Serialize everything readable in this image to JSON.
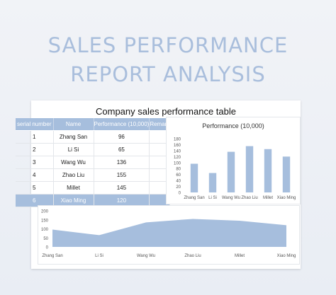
{
  "page": {
    "title_line1": "SALES PERFORMANCE",
    "title_line2": "REPORT ANALYSIS"
  },
  "table": {
    "title": "Company sales performance table",
    "headers": [
      "serial number",
      "Name",
      "Performance (10,000)",
      "Remark"
    ],
    "rows": [
      [
        "1",
        "Zhang San",
        "96",
        ""
      ],
      [
        "2",
        "Li Si",
        "65",
        ""
      ],
      [
        "3",
        "Wang Wu",
        "136",
        ""
      ],
      [
        "4",
        "Zhao Liu",
        "155",
        ""
      ],
      [
        "5",
        "Millet",
        "145",
        ""
      ],
      [
        "6",
        "Xiao Ming",
        "120",
        ""
      ]
    ]
  },
  "colors": {
    "accent": "#a6bedd",
    "bar": "#a6bedd",
    "area": "#a6bedd",
    "title": "#a9bedc"
  },
  "chart_data": [
    {
      "type": "bar",
      "title": "Performance (10,000)",
      "categories": [
        "Zhang San",
        "Li Si",
        "Wang Wu",
        "Zhao Liu",
        "Millet",
        "Xiao Ming"
      ],
      "values": [
        96,
        65,
        136,
        155,
        145,
        120
      ],
      "ylim": [
        0,
        180
      ],
      "yticks": [
        0,
        20,
        40,
        60,
        80,
        100,
        120,
        140,
        160,
        180
      ],
      "grid": false,
      "xlabel": "",
      "ylabel": ""
    },
    {
      "type": "area",
      "title": "",
      "categories": [
        "Zhang San",
        "Li Si",
        "Wang Wu",
        "Zhao Liu",
        "Millet",
        "Xiao Ming"
      ],
      "values": [
        96,
        65,
        136,
        155,
        145,
        120
      ],
      "ylim": [
        0,
        200
      ],
      "yticks": [
        0,
        50,
        100,
        150,
        200
      ],
      "grid": false,
      "xlabel": "",
      "ylabel": ""
    }
  ]
}
